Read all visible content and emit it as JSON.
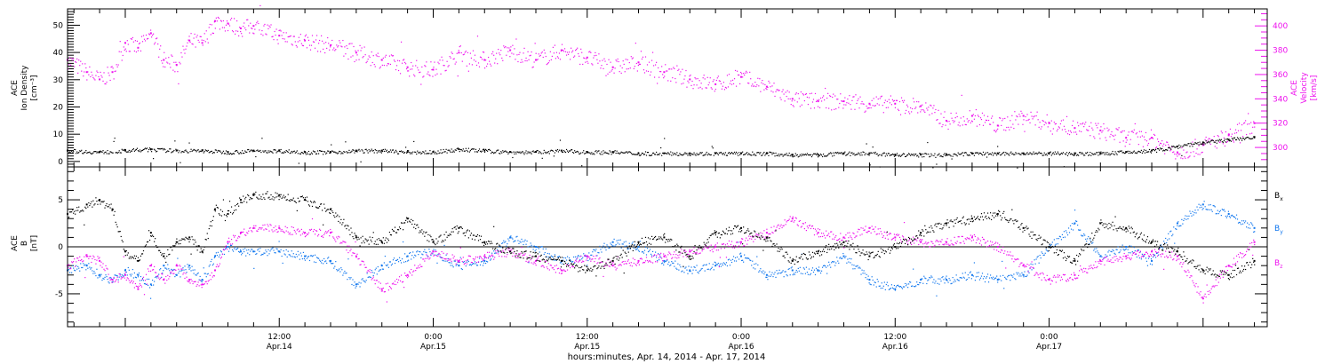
{
  "chart_data": [
    {
      "type": "scatter",
      "panel": "top",
      "ylabel_lines": [
        "ACE",
        "Ion Density",
        "[cm⁻³]"
      ],
      "ylabel2_lines": [
        "ACE",
        "Velocity",
        "[km/s]"
      ],
      "ylim": [
        -2,
        56
      ],
      "y_ticks": [
        0,
        10,
        20,
        30,
        40,
        50
      ],
      "y_tick_labels": [
        "0",
        "10",
        "20",
        "30",
        "40",
        "50"
      ],
      "ylim_right": [
        284,
        414
      ],
      "y_right_ticks": [
        300,
        320,
        340,
        360,
        380,
        400
      ],
      "y_right_tick_labels": [
        "300",
        "320",
        "340",
        "360",
        "380",
        "400"
      ],
      "x_range_hours": [
        -4.5,
        89.0
      ],
      "series": [
        {
          "color": "#000000",
          "axis": "left",
          "x": [
            -4.5,
            -2,
            0,
            2,
            4,
            6,
            8,
            10,
            12,
            14,
            16,
            18,
            20,
            22,
            24,
            26,
            28,
            30,
            32,
            34,
            36,
            38,
            40,
            42,
            44,
            46,
            48,
            50,
            52,
            54,
            56,
            58,
            60,
            62,
            64,
            66,
            68,
            70,
            72,
            74,
            76,
            78,
            80,
            82,
            84,
            86,
            88
          ],
          "values": [
            4,
            3.5,
            4,
            4.5,
            4,
            4,
            3.5,
            4,
            4,
            3.5,
            3.5,
            4,
            4,
            3.5,
            3.5,
            4.5,
            4,
            3.5,
            3.5,
            4,
            3.5,
            3.5,
            3,
            3,
            3,
            3,
            3,
            3,
            2.5,
            2.5,
            3,
            3,
            2.5,
            2.5,
            2.5,
            3,
            3,
            3,
            3,
            3,
            3,
            3.5,
            4,
            5.5,
            7,
            8,
            9
          ]
        },
        {
          "color": "#ee11ee",
          "axis": "right",
          "x": [
            -4.5,
            -3,
            -2,
            -1,
            0,
            1,
            2,
            3,
            4,
            5,
            6,
            7,
            8,
            9,
            10,
            12,
            14,
            16,
            18,
            20,
            22,
            24,
            26,
            28,
            30,
            32,
            34,
            36,
            38,
            40,
            42,
            44,
            46,
            48,
            50,
            52,
            54,
            56,
            58,
            60,
            62,
            64,
            66,
            68,
            70,
            72,
            74,
            76,
            78,
            80,
            82,
            84,
            86,
            88
          ],
          "values": [
            372,
            362,
            356,
            362,
            386,
            382,
            394,
            372,
            368,
            388,
            386,
            404,
            402,
            398,
            400,
            392,
            388,
            384,
            378,
            372,
            366,
            364,
            378,
            372,
            380,
            372,
            380,
            374,
            366,
            370,
            362,
            356,
            352,
            358,
            350,
            340,
            338,
            338,
            336,
            336,
            334,
            322,
            326,
            318,
            326,
            320,
            316,
            314,
            308,
            308,
            296,
            302,
            310,
            320
          ]
        }
      ]
    },
    {
      "type": "scatter",
      "panel": "bottom",
      "ylabel_lines": [
        "ACE",
        "B",
        "[nT]"
      ],
      "ylim": [
        -8.5,
        8.5
      ],
      "y_ticks": [
        -5,
        0,
        5
      ],
      "y_tick_labels": [
        "-5",
        "0",
        "5"
      ],
      "zero_line": true,
      "x_range_hours": [
        -4.5,
        89.0
      ],
      "series": [
        {
          "name": "B",
          "subscript": "x",
          "color": "#000000",
          "x": [
            -4.5,
            -3,
            -2,
            -1,
            0,
            1,
            2,
            3,
            4,
            5,
            6,
            7,
            8,
            9,
            10,
            12,
            14,
            16,
            18,
            20,
            22,
            24,
            26,
            28,
            30,
            32,
            34,
            36,
            38,
            40,
            42,
            44,
            46,
            48,
            50,
            52,
            54,
            56,
            58,
            60,
            62,
            64,
            66,
            68,
            70,
            72,
            74,
            76,
            78,
            80,
            82,
            84,
            86,
            88
          ],
          "values": [
            3.5,
            4.5,
            5,
            4,
            -0.5,
            -1.5,
            1.5,
            -1,
            0.5,
            1,
            -0.5,
            4,
            3.5,
            5,
            5.5,
            5.5,
            5,
            4,
            1,
            0.5,
            3,
            0.5,
            2,
            0.5,
            -0.5,
            -1,
            -1.5,
            -2.5,
            -1.5,
            0.5,
            1,
            -1,
            1.5,
            2,
            1,
            -1.5,
            -0.5,
            0.5,
            -1,
            0,
            1.5,
            2.5,
            3,
            3.5,
            2,
            0,
            -1.5,
            2.5,
            2,
            0.5,
            -0.5,
            -2.5,
            -3,
            -1.5
          ]
        },
        {
          "name": "B",
          "subscript": "y",
          "color": "#1177ee",
          "x": [
            -4.5,
            -3,
            -2,
            -1,
            0,
            1,
            2,
            3,
            4,
            5,
            6,
            7,
            8,
            9,
            10,
            12,
            14,
            16,
            18,
            20,
            22,
            24,
            26,
            28,
            30,
            32,
            34,
            36,
            38,
            40,
            42,
            44,
            46,
            48,
            50,
            52,
            54,
            56,
            58,
            60,
            62,
            64,
            66,
            68,
            70,
            72,
            74,
            76,
            78,
            80,
            82,
            84,
            86,
            88
          ],
          "values": [
            -2.5,
            -2,
            -3,
            -3.5,
            -2.5,
            -3,
            -4,
            -2,
            -3,
            -2,
            -3.5,
            -1,
            0,
            -0.5,
            -0.5,
            -0.5,
            -1,
            -1.5,
            -4,
            -2,
            -1,
            -0.5,
            -2,
            -1.5,
            1,
            0,
            -1.5,
            -1,
            0.5,
            0,
            -1.5,
            -2.5,
            -2,
            -1,
            -3,
            -2.5,
            -2.5,
            -1,
            -3.5,
            -4.5,
            -3.5,
            -3.5,
            -3,
            -3.5,
            -3,
            0,
            2.5,
            -1,
            0,
            -1.5,
            2.5,
            4.5,
            3.5,
            2
          ]
        },
        {
          "name": "B",
          "subscript": "z",
          "color": "#ee11ee",
          "x": [
            -4.5,
            -3,
            -2,
            -1,
            0,
            1,
            2,
            3,
            4,
            5,
            6,
            7,
            8,
            9,
            10,
            12,
            14,
            16,
            18,
            20,
            22,
            24,
            26,
            28,
            30,
            32,
            34,
            36,
            38,
            40,
            42,
            44,
            46,
            48,
            50,
            52,
            54,
            56,
            58,
            60,
            62,
            64,
            66,
            68,
            70,
            72,
            74,
            76,
            78,
            80,
            82,
            84,
            86,
            88
          ],
          "values": [
            -2,
            -1,
            -1.5,
            -3.5,
            -3,
            -4.5,
            -2,
            -3.5,
            -2,
            -3.5,
            -4,
            -2.5,
            0.5,
            1.5,
            2,
            2,
            1.5,
            1.5,
            -1,
            -4.5,
            -3,
            -0.5,
            -1.5,
            -1,
            -0.5,
            -1.5,
            -2.5,
            -1,
            -2,
            -1.5,
            -1,
            -0.5,
            0,
            0.5,
            1.5,
            3,
            1.5,
            1,
            2,
            1,
            0.5,
            0.5,
            1,
            0,
            -2,
            -3.5,
            -3,
            -1.5,
            -1,
            -0.5,
            -1,
            -5.5,
            -2,
            0.5
          ]
        }
      ]
    }
  ],
  "x_axis": {
    "tick_labels": [
      {
        "hour": 12,
        "time": "12:00",
        "date": "Apr.14"
      },
      {
        "hour": 24,
        "time": "0:00",
        "date": "Apr.15"
      },
      {
        "hour": 36,
        "time": "12:00",
        "date": "Apr.15"
      },
      {
        "hour": 48,
        "time": "0:00",
        "date": "Apr.16"
      },
      {
        "hour": 60,
        "time": "12:00",
        "date": "Apr.16"
      },
      {
        "hour": 72,
        "time": "0:00",
        "date": "Apr.17"
      }
    ],
    "minor_tick_every_hours": 2,
    "label": "hours:minutes, Apr. 14, 2014 - Apr. 17, 2014"
  },
  "colors": {
    "black": "#000000",
    "blue": "#1177ee",
    "magenta": "#ee11ee"
  }
}
